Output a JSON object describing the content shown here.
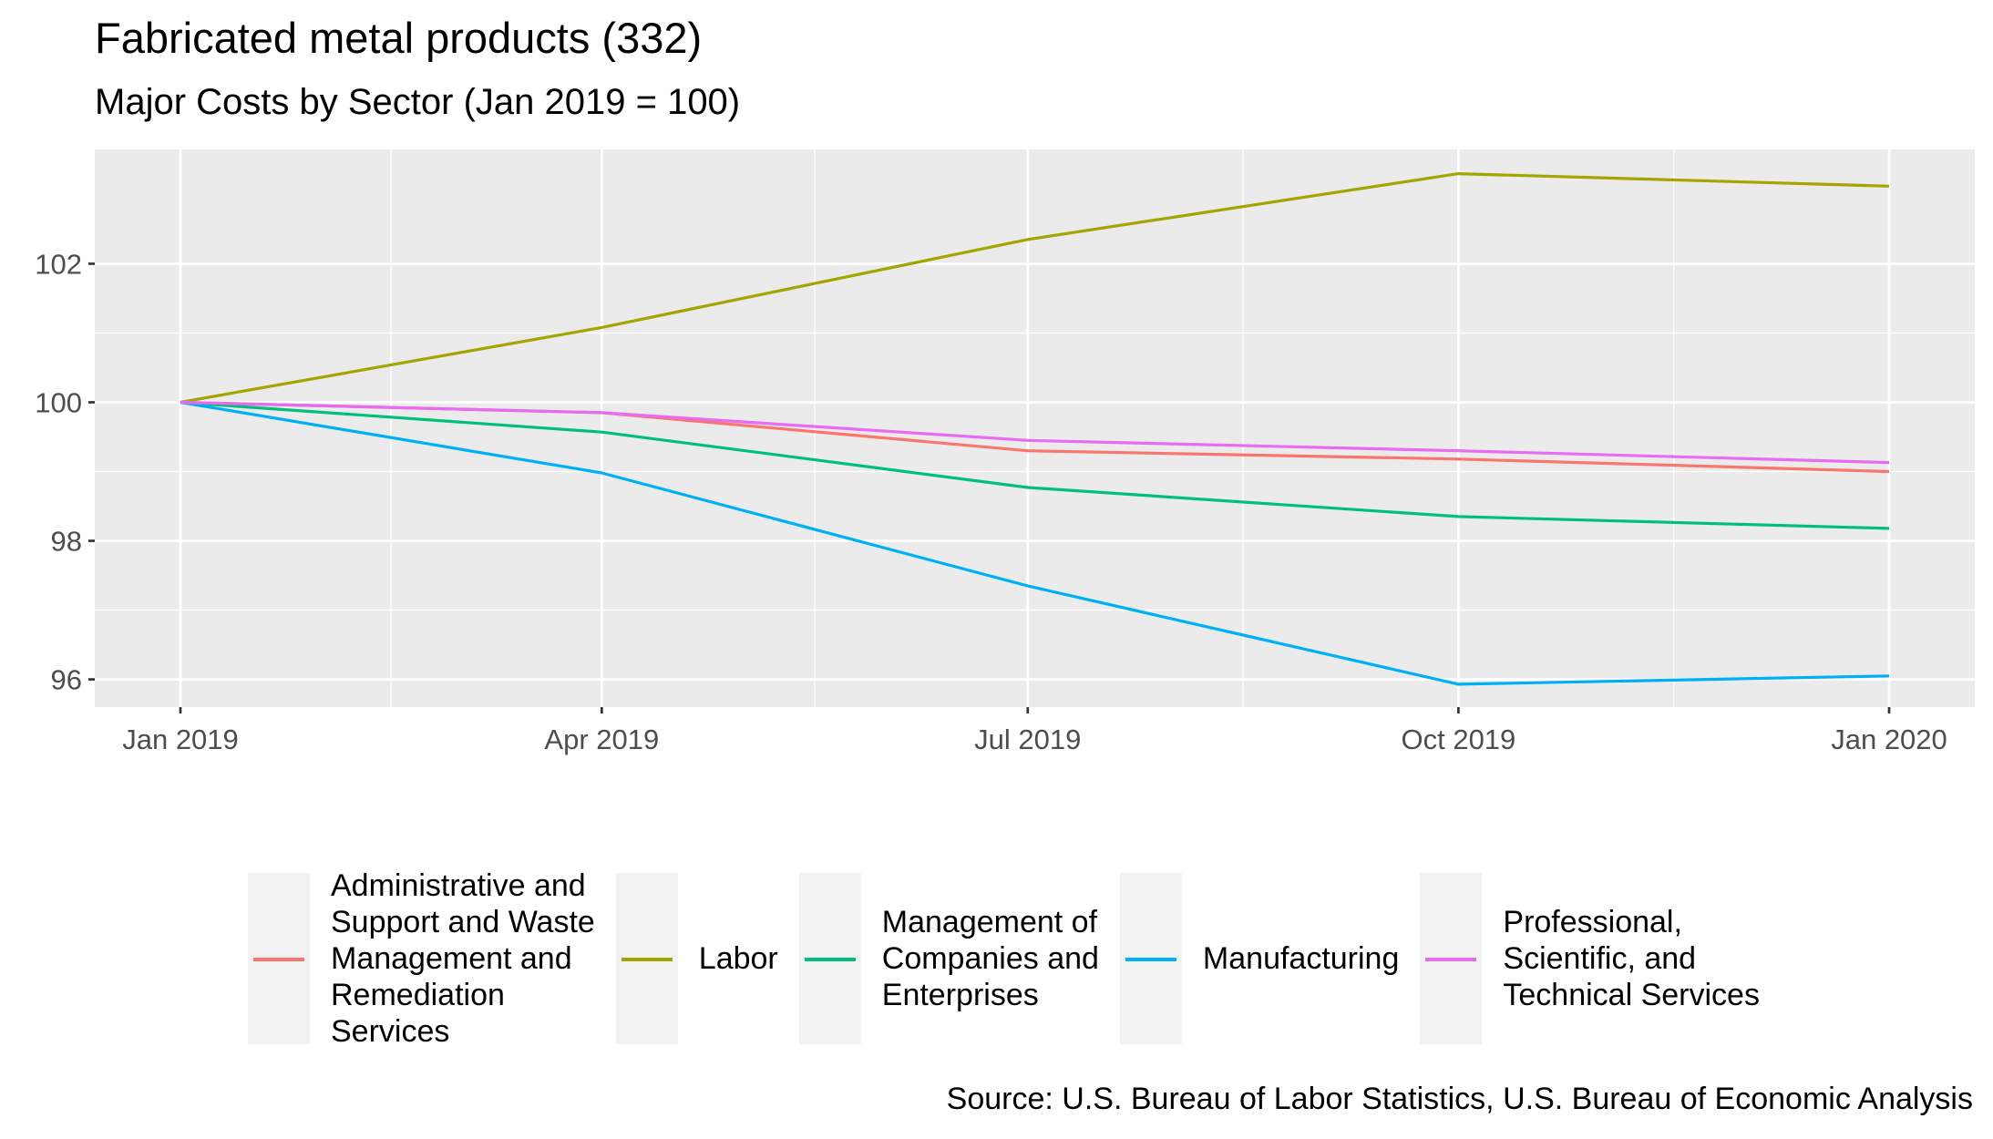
{
  "chart_data": {
    "type": "line",
    "title": "Fabricated metal products (332)",
    "subtitle": "Major Costs by Sector (Jan 2019 = 100)",
    "caption": "Source: U.S. Bureau of Labor Statistics, U.S. Bureau of Economic Analysis",
    "xlabel": "",
    "ylabel": "",
    "x": [
      "2019-01",
      "2019-04",
      "2019-07",
      "2019-10",
      "2020-01"
    ],
    "x_tick_labels": [
      "Jan 2019",
      "Apr 2019",
      "Jul 2019",
      "Oct 2019",
      "Jan 2020"
    ],
    "y_ticks": [
      96,
      98,
      100,
      102
    ],
    "y_tick_labels": [
      "96",
      "98",
      "100",
      "102"
    ],
    "ylim": [
      95.6,
      103.65
    ],
    "grid": true,
    "legend_position": "bottom",
    "series": [
      {
        "name": "Administrative and\nSupport and Waste\nManagement and\nRemediation\nServices",
        "color": "#F8766D",
        "values": [
          100,
          99.85,
          99.3,
          99.18,
          99.0
        ]
      },
      {
        "name": "Labor",
        "color": "#A3A500",
        "values": [
          100,
          101.08,
          102.35,
          103.3,
          103.12
        ]
      },
      {
        "name": "Management of\nCompanies and\nEnterprises",
        "color": "#00BF7D",
        "values": [
          100,
          99.57,
          98.77,
          98.35,
          98.18
        ]
      },
      {
        "name": "Manufacturing",
        "color": "#00B0F6",
        "values": [
          100,
          98.98,
          97.35,
          95.93,
          96.05
        ]
      },
      {
        "name": "Professional,\nScientific, and\nTechnical Services",
        "color": "#E76BF3",
        "values": [
          100,
          99.85,
          99.45,
          99.3,
          99.13
        ]
      }
    ]
  }
}
